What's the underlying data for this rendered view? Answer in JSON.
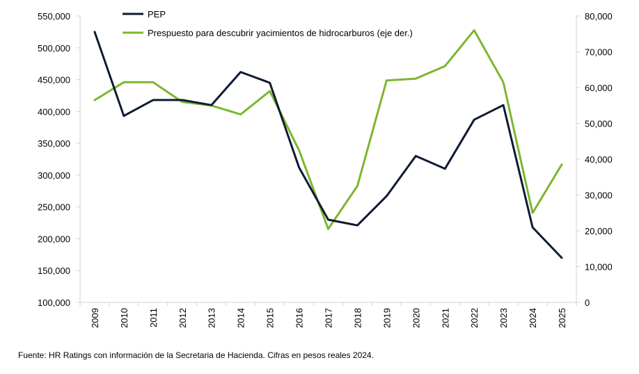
{
  "colors": {
    "pep": "#0e1a33",
    "budget": "#7cb62e",
    "axis": "#d0d0d0"
  },
  "source_note": "Fuente: HR Ratings con información de la Secretaria de Hacienda. Cifras en pesos reales 2024.",
  "chart_data": {
    "type": "line",
    "title": "",
    "xlabel": "",
    "ylabel": "",
    "categories": [
      "2009",
      "2010",
      "2011",
      "2012",
      "2013",
      "2014",
      "2015",
      "2016",
      "2017",
      "2018",
      "2019",
      "2020",
      "2021",
      "2022",
      "2023",
      "2024",
      "2025"
    ],
    "y_left": {
      "ylim": [
        100000,
        550000
      ],
      "ticks": [
        100000,
        150000,
        200000,
        250000,
        300000,
        350000,
        400000,
        450000,
        500000,
        550000
      ],
      "tick_labels": [
        "100,000",
        "150,000",
        "200,000",
        "250,000",
        "300,000",
        "350,000",
        "400,000",
        "450,000",
        "500,000",
        "550,000"
      ]
    },
    "y_right": {
      "ylim": [
        0,
        80000
      ],
      "ticks": [
        0,
        10000,
        20000,
        30000,
        40000,
        50000,
        60000,
        70000,
        80000
      ],
      "tick_labels": [
        "0",
        "10,000",
        "20,000",
        "30,000",
        "40,000",
        "50,000",
        "60,000",
        "70,000",
        "80,000"
      ]
    },
    "series": [
      {
        "name": "PEP",
        "axis": "left",
        "color": "#0e1a33",
        "values": [
          525000,
          393000,
          418000,
          418000,
          410000,
          462000,
          445000,
          312000,
          230000,
          221000,
          267000,
          330000,
          310000,
          387000,
          410000,
          218000,
          170000
        ]
      },
      {
        "name": "Prespuesto para descubrir yacimientos de hidrocarburos (eje der.)",
        "axis": "right",
        "color": "#7cb62e",
        "values": [
          56500,
          61500,
          61500,
          56000,
          55000,
          52500,
          59000,
          42500,
          20500,
          32500,
          62000,
          62500,
          66000,
          76000,
          61500,
          25000,
          38500
        ]
      }
    ],
    "legend": "top-left",
    "grid": false
  }
}
